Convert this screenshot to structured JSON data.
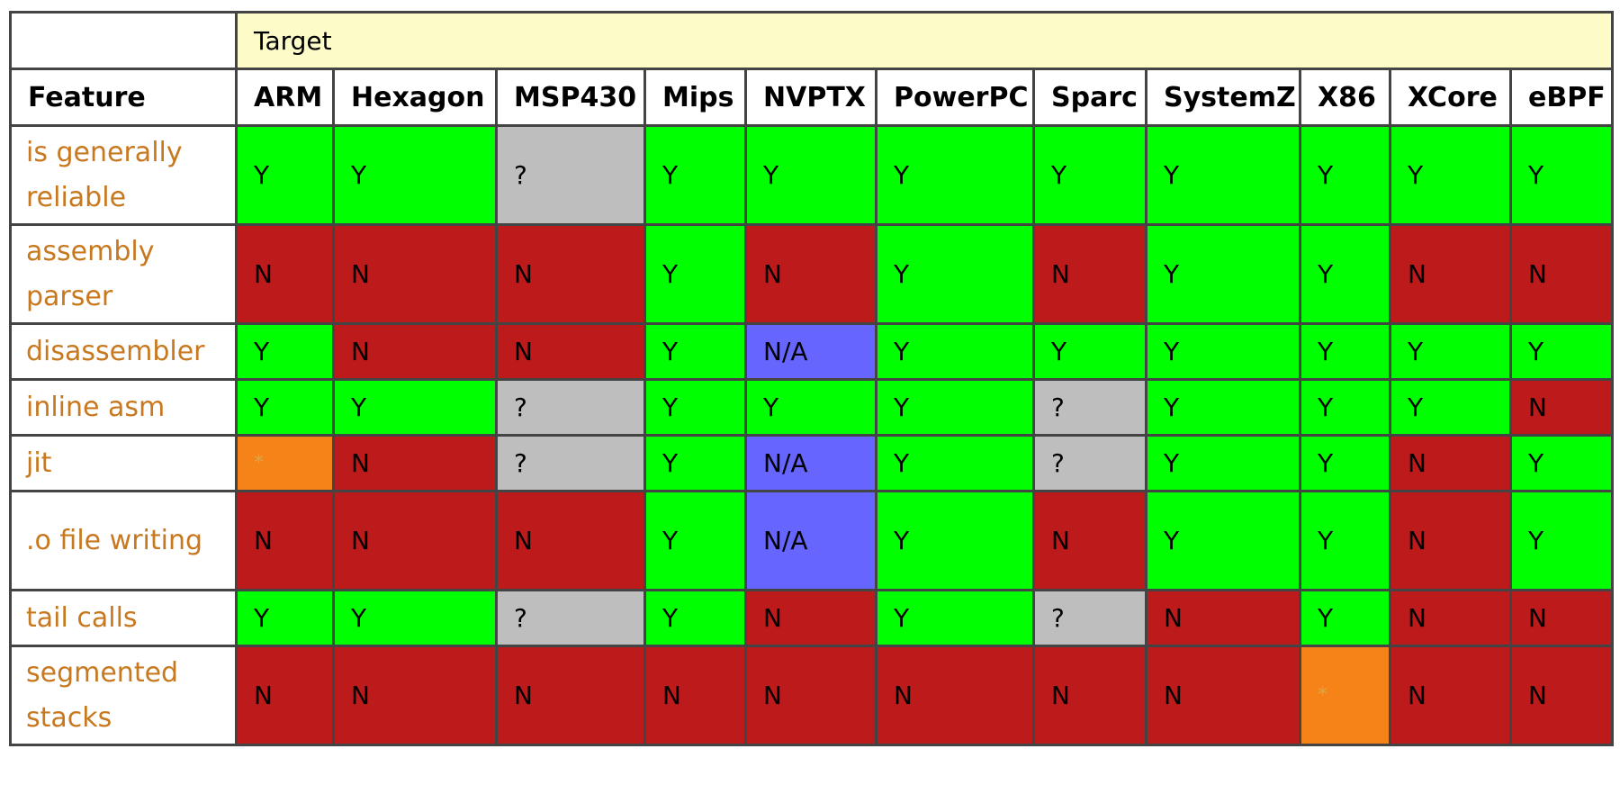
{
  "header": {
    "target_label": "Target",
    "feature_label": "Feature",
    "targets": [
      "ARM",
      "Hexagon",
      "MSP430",
      "Mips",
      "NVPTX",
      "PowerPC",
      "Sparc",
      "SystemZ",
      "X86",
      "XCore",
      "eBPF"
    ]
  },
  "rows": [
    {
      "feature": "is generally reliable",
      "values": [
        "Y",
        "Y",
        "?",
        "Y",
        "Y",
        "Y",
        "Y",
        "Y",
        "Y",
        "Y",
        "Y"
      ]
    },
    {
      "feature": "assembly parser",
      "values": [
        "N",
        "N",
        "N",
        "Y",
        "N",
        "Y",
        "N",
        "Y",
        "Y",
        "N",
        "N"
      ]
    },
    {
      "feature": "disassembler",
      "values": [
        "Y",
        "N",
        "N",
        "Y",
        "N/A",
        "Y",
        "Y",
        "Y",
        "Y",
        "Y",
        "Y"
      ]
    },
    {
      "feature": "inline asm",
      "values": [
        "Y",
        "Y",
        "?",
        "Y",
        "Y",
        "Y",
        "?",
        "Y",
        "Y",
        "Y",
        "N"
      ]
    },
    {
      "feature": "jit",
      "values": [
        "*",
        "N",
        "?",
        "Y",
        "N/A",
        "Y",
        "?",
        "Y",
        "Y",
        "N",
        "Y"
      ]
    },
    {
      "feature": ".o file writing",
      "values": [
        "N",
        "N",
        "N",
        "Y",
        "N/A",
        "Y",
        "N",
        "Y",
        "Y",
        "N",
        "Y"
      ]
    },
    {
      "feature": "tail calls",
      "values": [
        "Y",
        "Y",
        "?",
        "Y",
        "N",
        "Y",
        "?",
        "N",
        "Y",
        "N",
        "N"
      ]
    },
    {
      "feature": "segmented stacks",
      "values": [
        "N",
        "N",
        "N",
        "N",
        "N",
        "N",
        "N",
        "N",
        "*",
        "N",
        "N"
      ]
    }
  ],
  "colors": {
    "yes": "#00ff00",
    "no": "#bd1b1b",
    "unknown": "#bebebe",
    "not_applicable": "#6666ff",
    "partial": "#f58318",
    "target_header_bg": "#fdfbc8",
    "feature_text": "#c8781e"
  }
}
